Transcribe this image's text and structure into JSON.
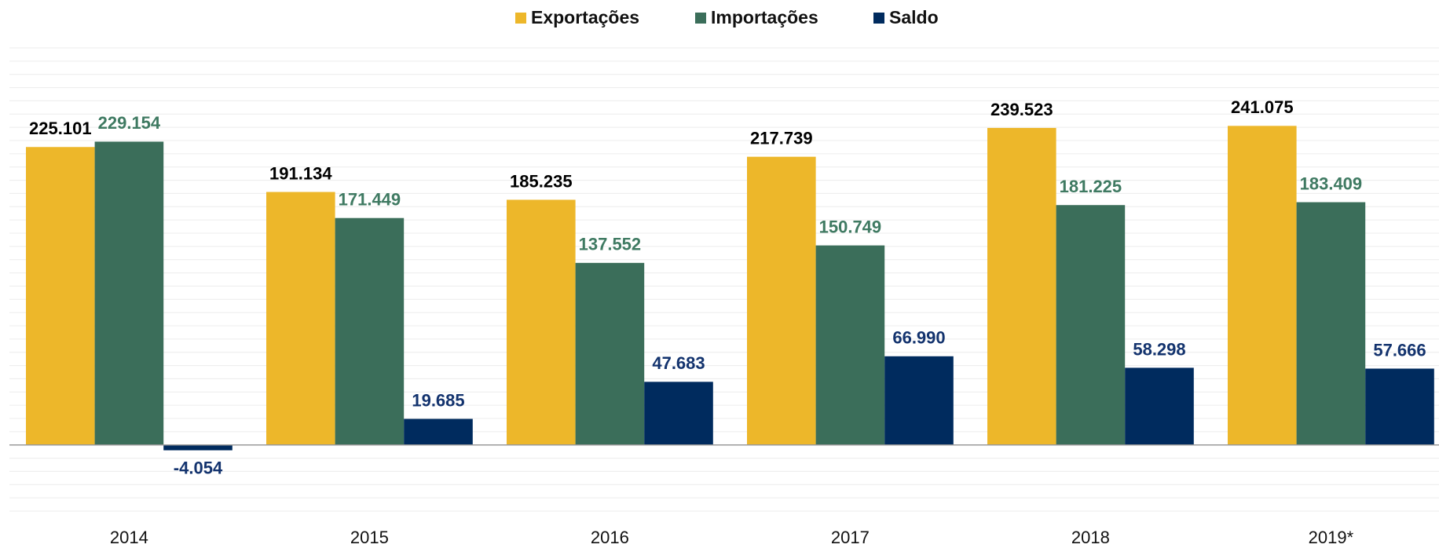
{
  "chart_data": {
    "type": "bar",
    "categories": [
      "2014",
      "2015",
      "2016",
      "2017",
      "2018",
      "2019*"
    ],
    "series": [
      {
        "name": "Exportações",
        "color": "#EDB72A",
        "values": [
          225.101,
          191.134,
          185.235,
          217.739,
          239.523,
          241.075
        ],
        "value_labels": [
          "225.101",
          "191.134",
          "185.235",
          "217.739",
          "239.523",
          "241.075"
        ]
      },
      {
        "name": "Importações",
        "color": "#3B6E5A",
        "values": [
          229.154,
          171.449,
          137.552,
          150.749,
          181.225,
          183.409
        ],
        "value_labels": [
          "229.154",
          "171.449",
          "137.552",
          "150.749",
          "181.225",
          "183.409"
        ]
      },
      {
        "name": "Saldo",
        "color": "#002B5E",
        "values": [
          -4.054,
          19.685,
          47.683,
          66.99,
          58.298,
          57.666
        ],
        "value_labels": [
          "-4.054",
          "19.685",
          "47.683",
          "66.990",
          "58.298",
          "57.666"
        ]
      }
    ],
    "ylim": [
      -50,
      300
    ],
    "yticks": [
      -50,
      -40,
      -30,
      -20,
      -10,
      0,
      10,
      20,
      30,
      40,
      50,
      60,
      70,
      80,
      90,
      100,
      110,
      120,
      130,
      140,
      150,
      160,
      170,
      180,
      190,
      200,
      210,
      220,
      230,
      240,
      250,
      260,
      270,
      280,
      290,
      300
    ],
    "grid": true,
    "legend": "top"
  }
}
